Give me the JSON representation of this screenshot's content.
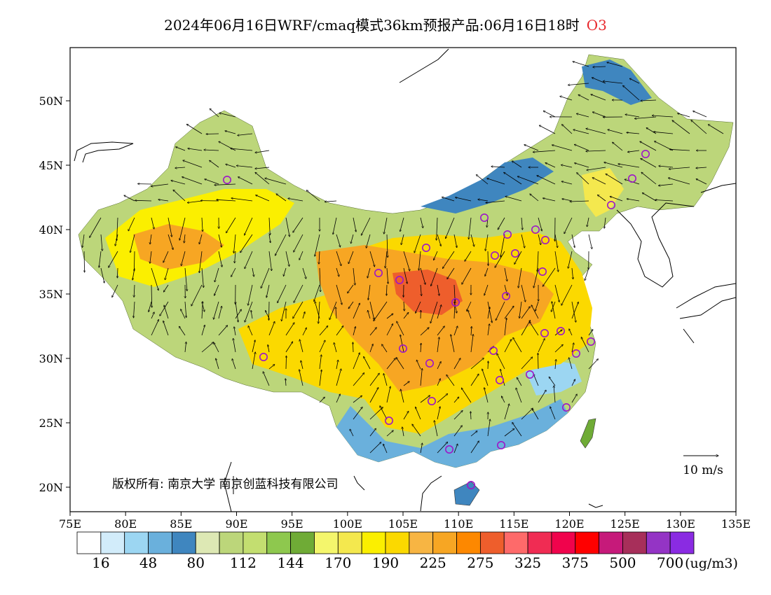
{
  "title": {
    "main": "2024年06月16日WRF/cmaq模式36km预报产品:06月16日18时",
    "species": "O3",
    "species_color": "#e8282d"
  },
  "map": {
    "lon_ticks": [
      "75E",
      "80E",
      "85E",
      "90E",
      "95E",
      "100E",
      "105E",
      "110E",
      "115E",
      "120E",
      "125E",
      "130E",
      "135E"
    ],
    "lat_ticks": [
      "50N",
      "45N",
      "40N",
      "35N",
      "30N",
      "25N",
      "20N"
    ],
    "copyright": "版权所有: 南京大学  南京创蓝科技有限公司",
    "wind_reference": {
      "label": "10 m/s",
      "value": 10,
      "unit": "m/s"
    }
  },
  "legend": {
    "unit": "(ug/m3)",
    "labels": [
      "16",
      "48",
      "80",
      "112",
      "144",
      "170",
      "190",
      "225",
      "275",
      "325",
      "375",
      "500",
      "700"
    ],
    "colors": [
      "#ffffff",
      "#d2ecfa",
      "#9cd6f2",
      "#6ab0dc",
      "#3f86bf",
      "#dde8b4",
      "#bcd67a",
      "#c3de70",
      "#8ec84e",
      "#6fab36",
      "#f4f66c",
      "#f4e84e",
      "#fbef00",
      "#fbd900",
      "#f7b543",
      "#f7a623",
      "#fd8800",
      "#ee5e2c",
      "#fe6a6a",
      "#f02c53",
      "#f0034c",
      "#ff0000",
      "#c61a7a",
      "#a72f5a",
      "#9434c5",
      "#8a2be2"
    ]
  }
}
